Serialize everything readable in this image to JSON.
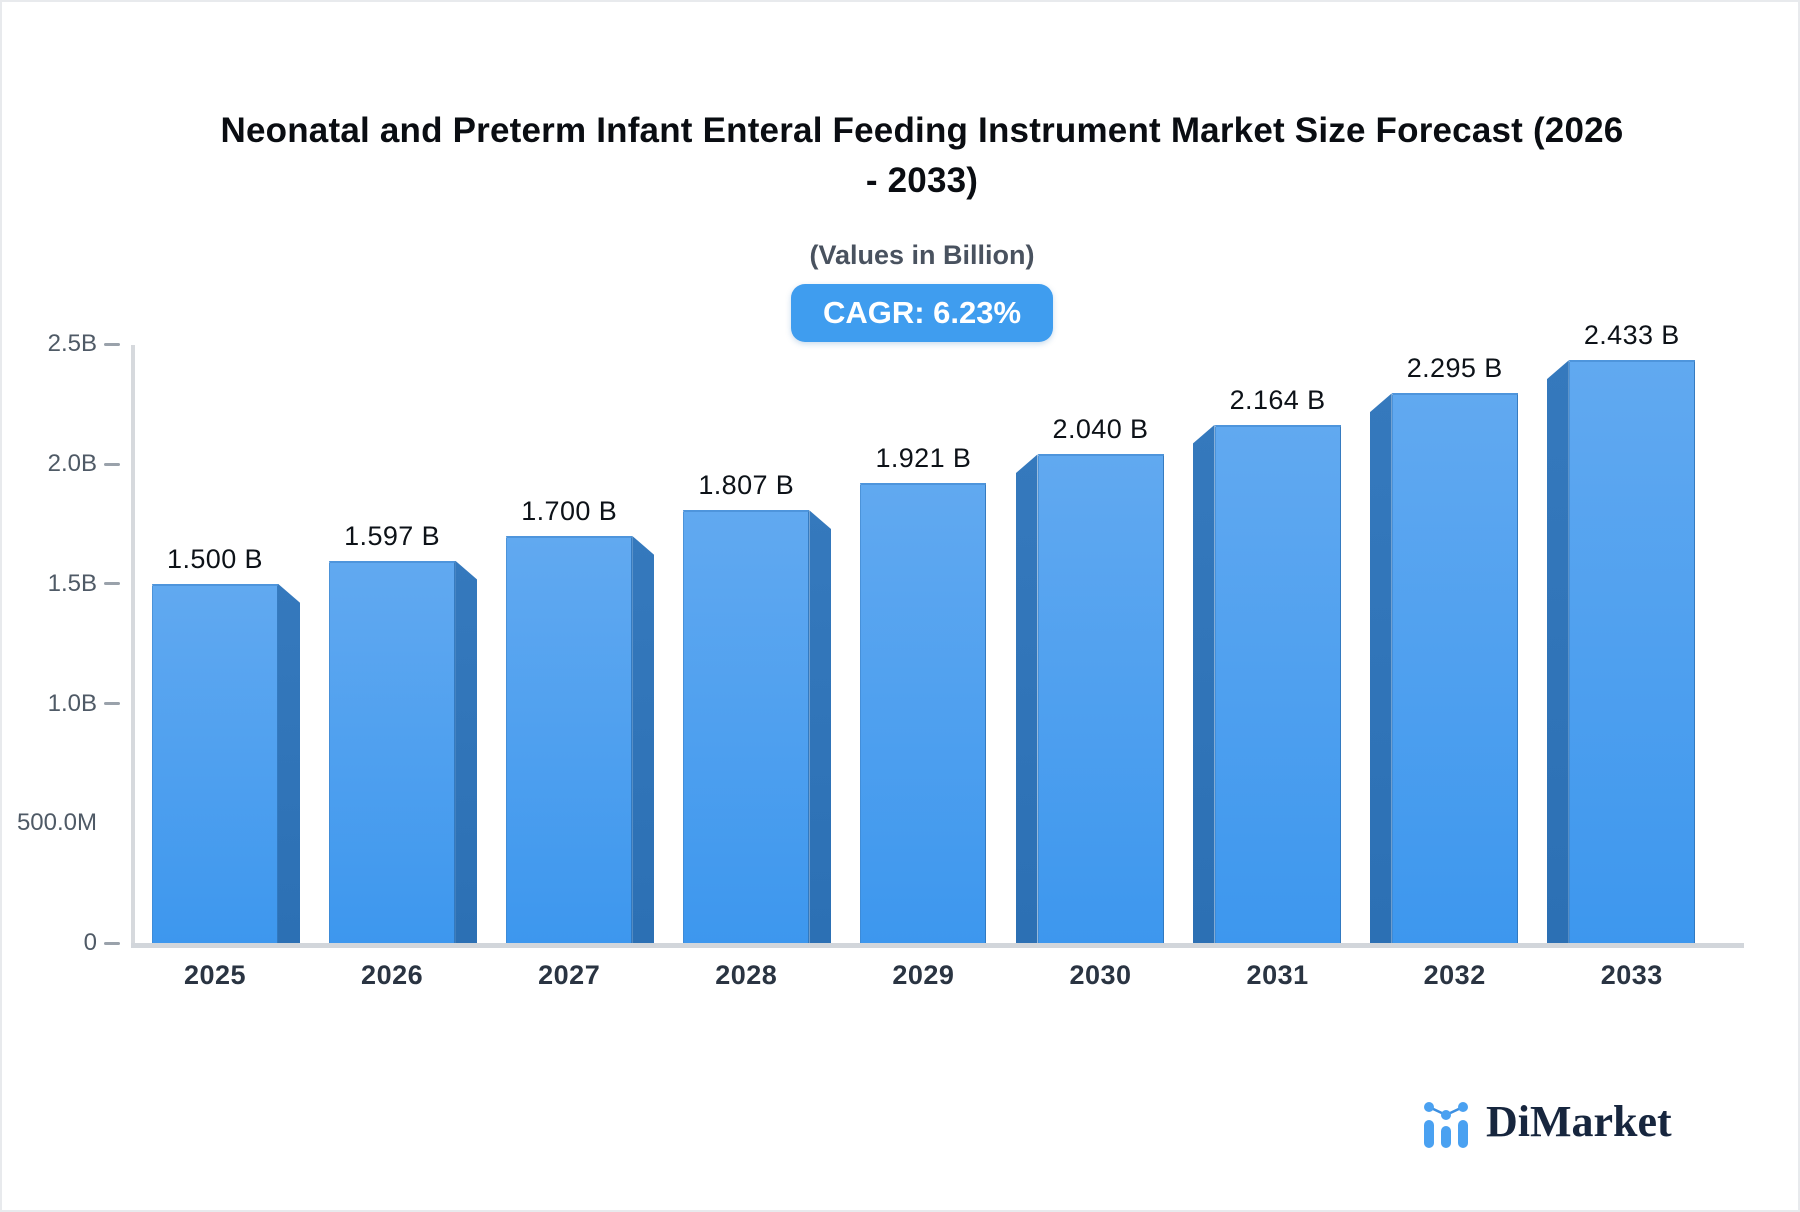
{
  "header": {
    "title_line1": "Neonatal and Preterm Infant Enteral Feeding Instrument Market Size Forecast (2026",
    "title_line2": "- 2033)",
    "subtitle": "(Values in Billion)",
    "cagr_badge": "CAGR: 6.23%"
  },
  "chart_data": {
    "type": "bar",
    "title": "Neonatal and Preterm Infant Enteral Feeding Instrument Market Size Forecast (2026 - 2033)",
    "subtitle": "(Values in Billion)",
    "cagr_percent": 6.23,
    "categories": [
      "2025",
      "2026",
      "2027",
      "2028",
      "2029",
      "2030",
      "2031",
      "2032",
      "2033"
    ],
    "values": [
      1.5,
      1.597,
      1.7,
      1.807,
      1.921,
      2.04,
      2.164,
      2.295,
      2.433
    ],
    "value_labels": [
      "1.500 B",
      "1.597 B",
      "1.700 B",
      "1.807 B",
      "1.921 B",
      "2.040 B",
      "2.164 B",
      "2.295 B",
      "2.433 B"
    ],
    "unit": "Billion",
    "ylim": [
      0,
      2.5
    ],
    "yticks": [
      {
        "label": "2.5B",
        "value": 2.5,
        "dash": true
      },
      {
        "label": "2.0B",
        "value": 2.0,
        "dash": true
      },
      {
        "label": "1.5B",
        "value": 1.5,
        "dash": true
      },
      {
        "label": "1.0B",
        "value": 1.0,
        "dash": true
      },
      {
        "label": "500.0M",
        "value": 0.5,
        "dash": false
      },
      {
        "label": "0",
        "value": 0.0,
        "dash": true
      }
    ],
    "grid": "off",
    "legend": "none",
    "colors": {
      "bar_top": "#61a9f0",
      "bar_bottom": "#3d97ee",
      "bar_side_top": "#3579bd",
      "bar_side_bottom": "#2c70b4",
      "accent": "#3f9def"
    }
  },
  "branding": {
    "logo_text": "DiMarket",
    "logo_icon": "mini-bar-chart-icon",
    "logo_color": "#4aa1f1",
    "logo_text_color": "#17263e"
  }
}
